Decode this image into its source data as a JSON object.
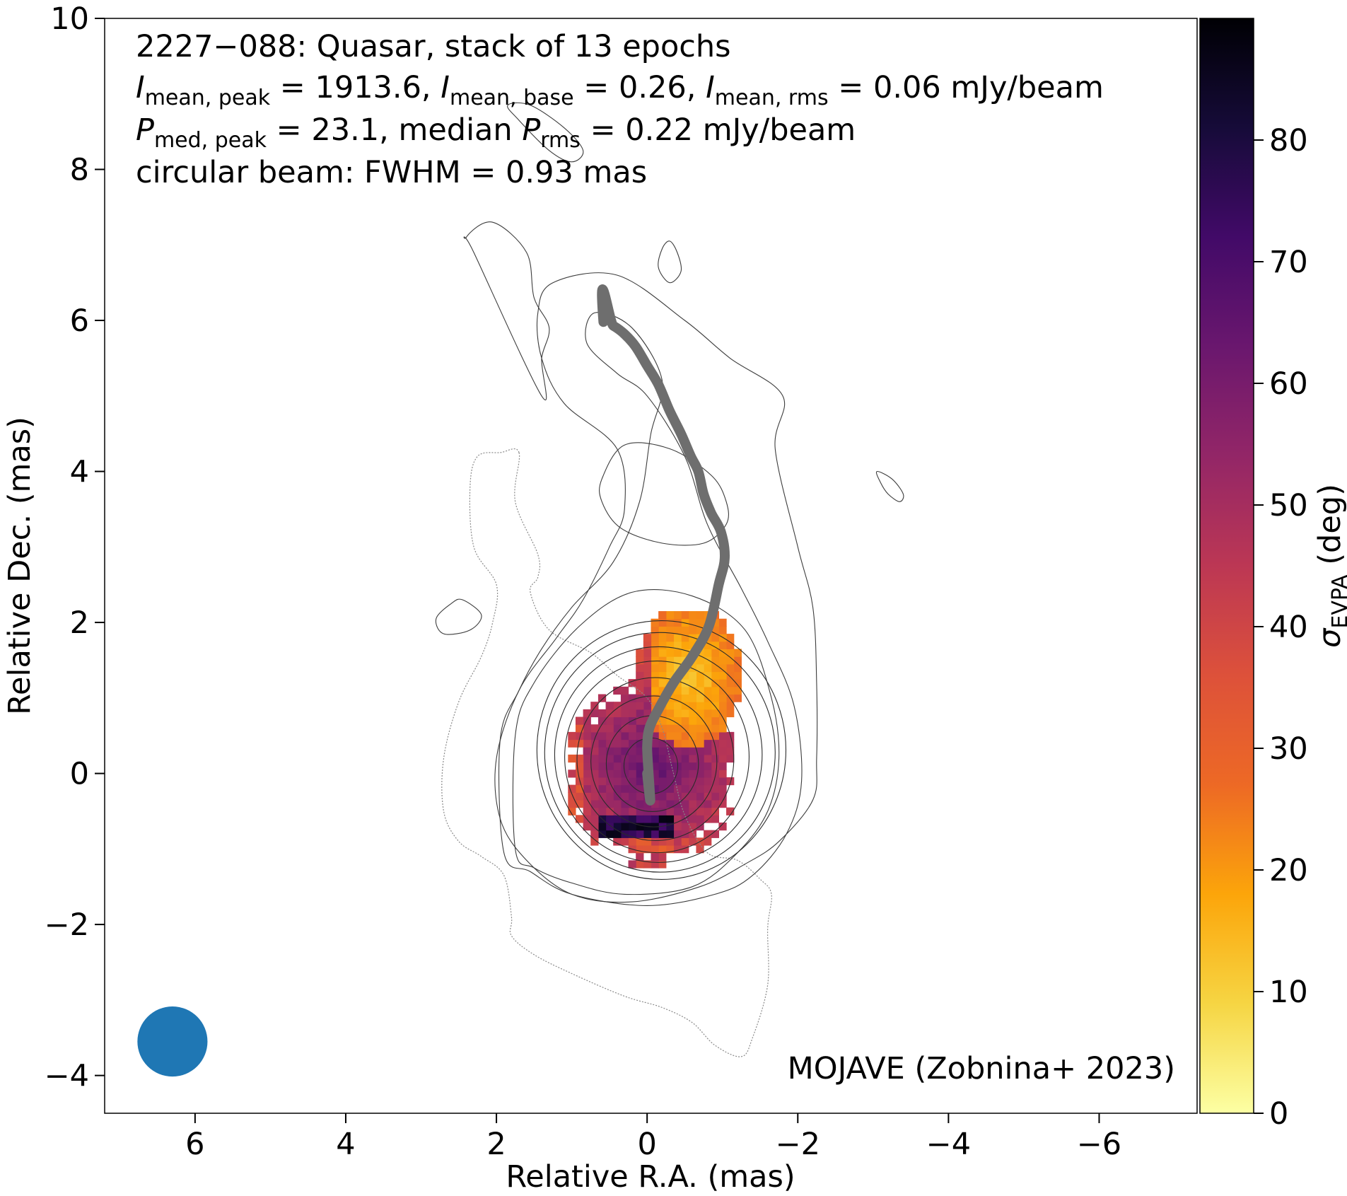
{
  "chart_data": {
    "type": "heatmap",
    "annotations": {
      "line1": "2227−088: Quasar, stack of 13 epochs",
      "line2": "I_mean,peak = 1913.6, I_mean,base = 0.26, I_mean,rms = 0.06 mJy/beam",
      "line3": "P_med,peak = 23.1, median P_rms = 0.22 mJy/beam",
      "line4": "circular beam: FWHM = 0.93 mas",
      "credit": "MOJAVE (Zobnina+ 2023)"
    },
    "title_parts": {
      "line2": {
        "a": "I",
        "a_sub": "mean, peak",
        "a_val": " = 1913.6, ",
        "b": "I",
        "b_sub": "mean, base",
        "b_val": " = 0.26, ",
        "c": "I",
        "c_sub": "mean, rms",
        "c_val": " = 0.06 mJy/beam"
      },
      "line3": {
        "a": "P",
        "a_sub": "med, peak",
        "a_val": " = 23.1, median ",
        "b": "P",
        "b_sub": "rms",
        "b_val": " = 0.22 mJy/beam"
      }
    },
    "xlabel": "Relative R.A. (mas)",
    "ylabel": "Relative Dec. (mas)",
    "colorbar_label": {
      "symbol": "σ",
      "sub": "EVPA",
      "unit": " (deg)"
    },
    "xlim": [
      7.2,
      -7.3
    ],
    "ylim": [
      -4.5,
      10
    ],
    "x_ticks": [
      6,
      4,
      2,
      0,
      -2,
      -4,
      -6
    ],
    "x_tick_labels": [
      "6",
      "4",
      "2",
      "0",
      "−2",
      "−4",
      "−6"
    ],
    "y_ticks": [
      -4,
      -2,
      0,
      2,
      4,
      6,
      8,
      10
    ],
    "y_tick_labels": [
      "−4",
      "−2",
      "0",
      "2",
      "4",
      "6",
      "8",
      "10"
    ],
    "colorbar_range": [
      0,
      90
    ],
    "colorbar_ticks": [
      0,
      10,
      20,
      30,
      40,
      50,
      60,
      70,
      80
    ],
    "colormap": "inferno_r",
    "colormap_stops": [
      "#fcffa4",
      "#f6d543",
      "#fca50a",
      "#ed6925",
      "#dd513a",
      "#bc3754",
      "#932667",
      "#6a176e",
      "#420a68",
      "#160b39",
      "#000004"
    ],
    "beam": {
      "center_x": 6.3,
      "center_y": -3.55,
      "fwhm": 0.93,
      "color": "#1f77b4"
    },
    "ridge_line": {
      "color": "#6e6e6e",
      "points": [
        [
          0.0,
          0.0
        ],
        [
          0.0,
          0.35
        ],
        [
          -0.03,
          0.6
        ],
        [
          -0.15,
          0.85
        ],
        [
          -0.35,
          1.2
        ],
        [
          -0.6,
          1.55
        ],
        [
          -0.82,
          1.95
        ],
        [
          -0.95,
          2.5
        ],
        [
          -1.03,
          2.85
        ],
        [
          -0.98,
          3.2
        ],
        [
          -0.85,
          3.45
        ],
        [
          -0.75,
          3.7
        ],
        [
          -0.68,
          4.0
        ],
        [
          -0.58,
          4.2
        ],
        [
          -0.45,
          4.5
        ],
        [
          -0.3,
          4.8
        ],
        [
          -0.15,
          5.15
        ],
        [
          0.0,
          5.4
        ],
        [
          0.15,
          5.65
        ],
        [
          0.3,
          5.82
        ],
        [
          0.45,
          5.93
        ],
        [
          0.58,
          5.98
        ]
      ]
    },
    "core_center": [
      -0.05,
      0.1
    ],
    "ring_radii_mas": [
      0.35,
      0.6,
      0.82,
      1.02,
      1.2,
      1.35,
      1.5,
      1.62
    ],
    "contours_outer": [
      [
        [
          1.75,
          -1.0
        ],
        [
          1.75,
          0.5
        ],
        [
          1.5,
          1.2
        ],
        [
          0.9,
          1.95
        ],
        [
          0.2,
          2.4
        ],
        [
          -0.6,
          2.35
        ],
        [
          -1.3,
          1.9
        ],
        [
          -1.65,
          1.0
        ],
        [
          -1.75,
          0.2
        ],
        [
          -1.6,
          -0.5
        ],
        [
          -1.2,
          -1.05
        ],
        [
          -0.6,
          -1.5
        ],
        [
          0.3,
          -1.6
        ],
        [
          1.0,
          -1.45
        ],
        [
          1.5,
          -1.25
        ]
      ],
      [
        [
          1.9,
          -1.05
        ],
        [
          1.95,
          0.45
        ],
        [
          1.7,
          1.1
        ],
        [
          1.4,
          1.65
        ],
        [
          1.0,
          2.2
        ],
        [
          0.45,
          2.8
        ],
        [
          0.1,
          3.6
        ],
        [
          -0.05,
          4.5
        ],
        [
          -0.2,
          5.2
        ],
        [
          0.2,
          5.9
        ],
        [
          0.7,
          6.1
        ],
        [
          0.8,
          5.7
        ],
        [
          0.4,
          5.3
        ],
        [
          0.0,
          5.0
        ],
        [
          -0.5,
          4.2
        ],
        [
          -0.8,
          3.3
        ],
        [
          -1.25,
          2.45
        ],
        [
          -1.6,
          1.75
        ],
        [
          -1.95,
          0.9
        ],
        [
          -2.05,
          -0.1
        ],
        [
          -1.85,
          -0.8
        ],
        [
          -1.4,
          -1.35
        ],
        [
          -0.9,
          -1.6
        ],
        [
          0.0,
          -1.75
        ],
        [
          1.0,
          -1.6
        ],
        [
          1.55,
          -1.3
        ]
      ],
      [
        [
          1.4,
          5.5
        ],
        [
          1.45,
          6.1
        ],
        [
          1.25,
          6.5
        ],
        [
          0.4,
          6.6
        ],
        [
          -0.5,
          6.0
        ],
        [
          -1.1,
          5.5
        ],
        [
          -1.8,
          5.0
        ],
        [
          -1.7,
          4.3
        ],
        [
          -2.0,
          3.0
        ],
        [
          -2.2,
          2.2
        ],
        [
          -2.25,
          1.2
        ],
        [
          -2.25,
          0.2
        ],
        [
          -2.2,
          -0.35
        ],
        [
          -1.75,
          -0.9
        ],
        [
          -1.3,
          -1.2
        ],
        [
          -0.7,
          -1.5
        ],
        [
          0.2,
          -1.7
        ],
        [
          1.0,
          -1.6
        ],
        [
          1.6,
          -1.15
        ],
        [
          1.95,
          -0.6
        ],
        [
          2.0,
          0.2
        ],
        [
          1.7,
          1.1
        ],
        [
          1.2,
          1.8
        ],
        [
          0.85,
          2.3
        ],
        [
          0.5,
          3.0
        ],
        [
          0.3,
          3.5
        ],
        [
          0.4,
          4.3
        ],
        [
          1.1,
          4.9
        ]
      ],
      [
        [
          2.3,
          6.9
        ],
        [
          2.4,
          7.1
        ],
        [
          2.05,
          7.3
        ],
        [
          1.6,
          6.9
        ],
        [
          1.5,
          6.3
        ],
        [
          1.3,
          5.9
        ],
        [
          1.4,
          5.5
        ],
        [
          1.4,
          5.0
        ]
      ],
      [
        [
          0.6,
          3.9
        ],
        [
          0.3,
          4.35
        ],
        [
          -0.3,
          4.3
        ],
        [
          -0.85,
          3.95
        ],
        [
          -1.05,
          3.6
        ],
        [
          -1.05,
          3.3
        ],
        [
          -0.75,
          3.05
        ],
        [
          -0.2,
          3.05
        ],
        [
          0.35,
          3.25
        ],
        [
          0.6,
          3.6
        ]
      ],
      [
        [
          -0.3,
          7.05
        ],
        [
          -0.4,
          6.9
        ],
        [
          -0.45,
          6.65
        ],
        [
          -0.3,
          6.5
        ],
        [
          -0.15,
          6.7
        ],
        [
          -0.2,
          6.95
        ]
      ],
      [
        [
          1.7,
          8.65
        ],
        [
          1.85,
          8.85
        ],
        [
          1.55,
          8.85
        ],
        [
          1.1,
          8.55
        ],
        [
          0.85,
          8.25
        ],
        [
          1.0,
          8.1
        ],
        [
          1.3,
          8.25
        ]
      ],
      [
        [
          -3.05,
          4.0
        ],
        [
          -3.25,
          3.9
        ],
        [
          -3.4,
          3.7
        ],
        [
          -3.35,
          3.6
        ],
        [
          -3.2,
          3.7
        ],
        [
          -3.1,
          3.85
        ]
      ],
      [
        [
          2.6,
          2.25
        ],
        [
          2.8,
          2.05
        ],
        [
          2.7,
          1.85
        ],
        [
          2.35,
          1.9
        ],
        [
          2.2,
          2.1
        ],
        [
          2.45,
          2.3
        ]
      ]
    ],
    "contours_dotted": [
      [
        [
          1.7,
          4.25
        ],
        [
          1.75,
          3.6
        ],
        [
          1.45,
          2.9
        ],
        [
          1.45,
          2.6
        ],
        [
          1.55,
          2.4
        ],
        [
          1.3,
          1.9
        ],
        [
          0.75,
          1.6
        ],
        [
          0.4,
          1.3
        ],
        [
          0.0,
          1.0
        ],
        [
          -0.2,
          0.6
        ],
        [
          -0.35,
          0.0
        ],
        [
          -0.5,
          -0.55
        ],
        [
          -0.8,
          -1.05
        ],
        [
          -1.2,
          -1.15
        ],
        [
          -1.5,
          -1.4
        ],
        [
          -1.65,
          -1.6
        ],
        [
          -1.6,
          -2.05
        ],
        [
          -1.6,
          -2.8
        ],
        [
          -1.4,
          -3.5
        ],
        [
          -1.25,
          -3.75
        ],
        [
          -0.9,
          -3.6
        ],
        [
          -0.6,
          -3.3
        ],
        [
          -0.2,
          -3.1
        ],
        [
          0.3,
          -2.95
        ],
        [
          1.0,
          -2.65
        ],
        [
          1.5,
          -2.4
        ],
        [
          1.8,
          -2.15
        ],
        [
          1.8,
          -1.9
        ],
        [
          1.9,
          -1.35
        ],
        [
          2.2,
          -1.1
        ],
        [
          2.5,
          -0.9
        ],
        [
          2.7,
          -0.5
        ],
        [
          2.7,
          0.2
        ],
        [
          2.5,
          0.95
        ],
        [
          2.2,
          1.55
        ],
        [
          2.05,
          2.0
        ],
        [
          2.0,
          2.5
        ],
        [
          2.3,
          3.0
        ],
        [
          2.35,
          3.8
        ],
        [
          2.25,
          4.2
        ],
        [
          1.95,
          4.25
        ]
      ]
    ],
    "sigma_evpa_map": {
      "cell_size_mas": 0.1,
      "regions": [
        {
          "name": "west-jet",
          "center": [
            -0.55,
            1.25
          ],
          "radii": [
            0.7,
            0.95
          ],
          "values": [
            8,
            22
          ]
        },
        {
          "name": "east-edge",
          "center": [
            1.0,
            0.35
          ],
          "radii": [
            0.35,
            0.75
          ],
          "values": [
            25,
            45
          ]
        },
        {
          "name": "core",
          "center": [
            0.05,
            0.05
          ],
          "radii": [
            0.9,
            0.95
          ],
          "values": [
            45,
            65
          ]
        },
        {
          "name": "south-band",
          "center": [
            0.2,
            -0.7
          ],
          "radii": [
            0.75,
            0.15
          ],
          "values": [
            70,
            88
          ]
        }
      ]
    }
  }
}
